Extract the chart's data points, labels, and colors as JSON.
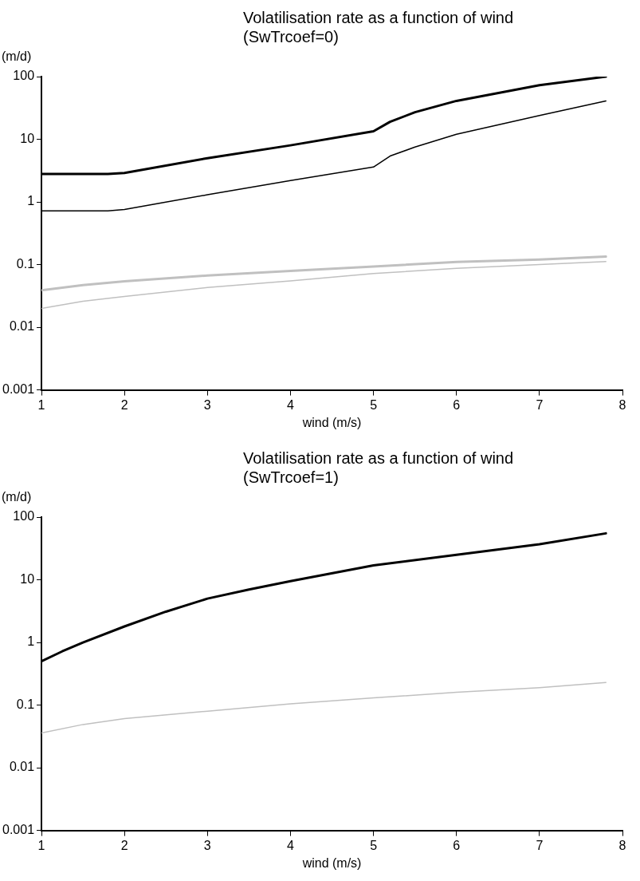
{
  "chart_data": [
    {
      "type": "line",
      "title": "Volatilisation rate as a function of wind\n(SwTrcoef=0)",
      "xlabel": "wind (m/s)",
      "ylabel": "(m/d)",
      "log": "y",
      "grid": false,
      "legend": false,
      "marker": "none",
      "line_style": "solid",
      "xlim": [
        1,
        8
      ],
      "xticks": [
        1,
        2,
        3,
        4,
        5,
        6,
        7,
        8
      ],
      "ylim": [
        0.001,
        100
      ],
      "yticks": [
        0.001,
        0.01,
        0.1,
        1,
        10,
        100
      ],
      "series": [
        {
          "color": "#000000",
          "x": [
            1,
            1.8,
            2,
            3,
            4,
            5,
            5.2,
            5.5,
            6,
            7,
            7.8
          ],
          "values": [
            2.8,
            2.8,
            2.9,
            5,
            8,
            13.4,
            19,
            27,
            41,
            73,
            100
          ]
        },
        {
          "color": "#000000",
          "x": [
            1,
            1.8,
            2,
            3,
            4,
            5,
            5.2,
            5.5,
            6,
            7,
            7.8
          ],
          "values": [
            0.72,
            0.72,
            0.76,
            1.3,
            2.2,
            3.6,
            5.4,
            7.5,
            12,
            24,
            41
          ]
        },
        {
          "color": "#c0c0c0",
          "x": [
            1,
            1.5,
            2,
            3,
            4,
            5,
            6,
            7,
            7.8
          ],
          "values": [
            0.039,
            0.047,
            0.054,
            0.067,
            0.079,
            0.093,
            0.11,
            0.12,
            0.134
          ]
        },
        {
          "color": "#c0c0c0",
          "x": [
            1,
            1.5,
            2,
            3,
            4,
            5,
            6,
            7,
            7.8
          ],
          "values": [
            0.02,
            0.026,
            0.031,
            0.043,
            0.055,
            0.072,
            0.087,
            0.1,
            0.112
          ]
        }
      ]
    },
    {
      "type": "line",
      "title": "Volatilisation rate as a function of wind\n(SwTrcoef=1)",
      "xlabel": "wind (m/s)",
      "ylabel": "(m/d)",
      "log": "y",
      "grid": false,
      "legend": false,
      "marker": "none",
      "line_style": "solid",
      "xlim": [
        1,
        8
      ],
      "xticks": [
        1,
        2,
        3,
        4,
        5,
        6,
        7,
        8
      ],
      "ylim": [
        0.001,
        100
      ],
      "yticks": [
        0.001,
        0.01,
        0.1,
        1,
        10,
        100
      ],
      "series": [
        {
          "color": "#000000",
          "x": [
            1,
            1.25,
            1.5,
            2,
            2.5,
            3,
            3.5,
            4,
            5,
            6,
            7,
            7.8
          ],
          "values": [
            0.5,
            0.72,
            1,
            1.8,
            3.1,
            5,
            7,
            9.5,
            17,
            25,
            37,
            55
          ]
        },
        {
          "color": "#c0c0c0",
          "x": [
            1,
            1.5,
            2,
            3,
            4,
            5,
            6,
            7,
            7.8
          ],
          "values": [
            0.036,
            0.049,
            0.061,
            0.08,
            0.105,
            0.13,
            0.16,
            0.19,
            0.23
          ]
        }
      ]
    }
  ]
}
